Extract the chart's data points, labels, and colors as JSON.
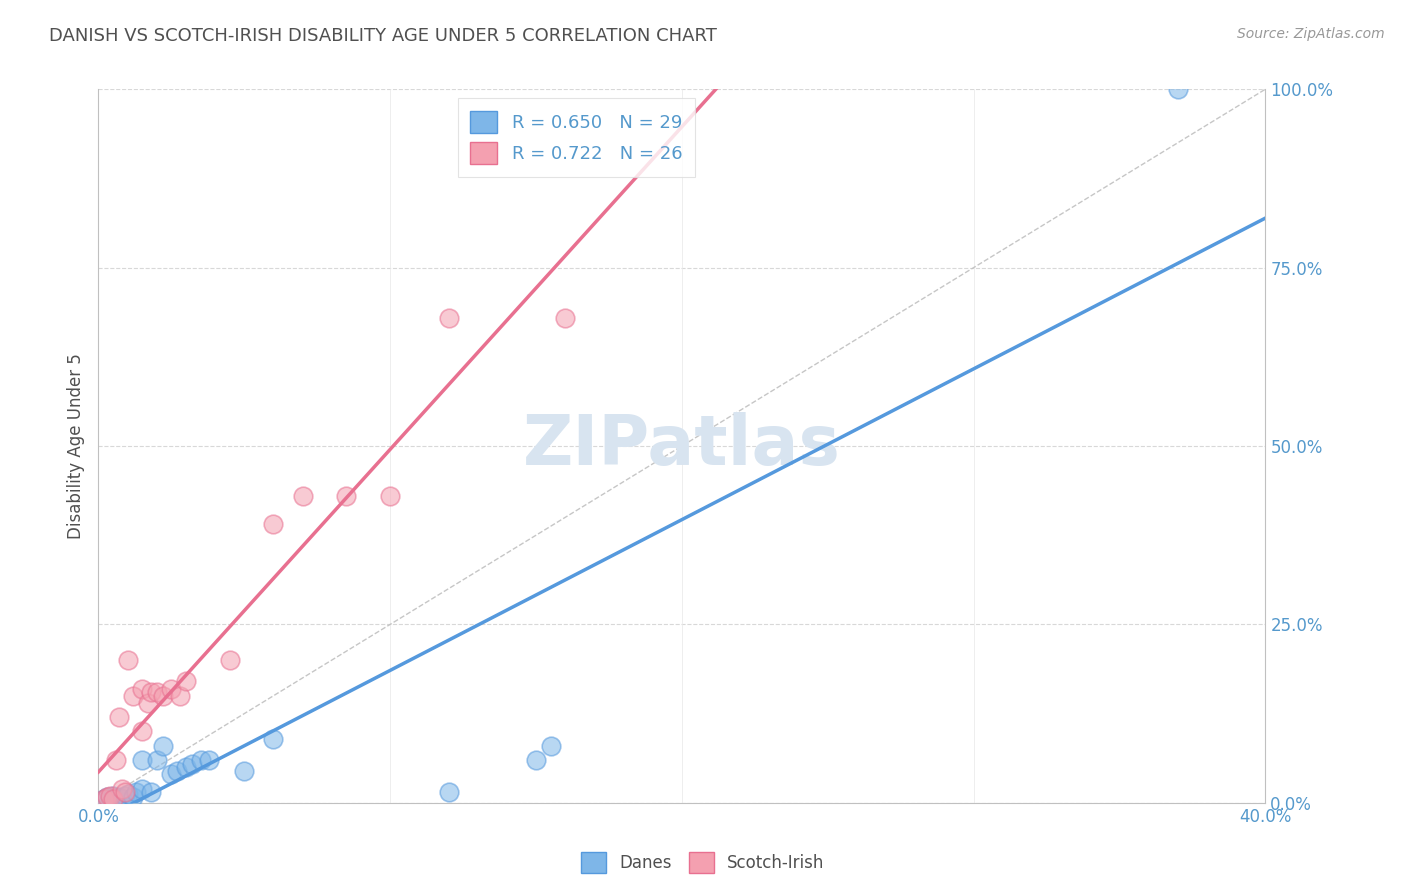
{
  "title": "DANISH VS SCOTCH-IRISH DISABILITY AGE UNDER 5 CORRELATION CHART",
  "source": "Source: ZipAtlas.com",
  "xlabel": "",
  "ylabel": "Disability Age Under 5",
  "xlim": [
    0.0,
    0.4
  ],
  "ylim": [
    0.0,
    1.0
  ],
  "xticks": [
    0.0,
    0.1,
    0.2,
    0.3,
    0.4
  ],
  "yticks": [
    0.0,
    0.25,
    0.5,
    0.75,
    1.0
  ],
  "xticklabels": [
    "0.0%",
    "",
    "",
    "",
    "40.0%"
  ],
  "yticklabels_right": [
    "0.0%",
    "25.0%",
    "50.0%",
    "75.0%",
    "100.0%"
  ],
  "danes_color": "#7EB6E8",
  "danes_edge_color": "#5599DD",
  "scotch_color": "#F4A0B0",
  "scotch_edge_color": "#E87090",
  "danes_R": 0.65,
  "danes_N": 29,
  "scotch_R": 0.722,
  "scotch_N": 26,
  "danes_line_color": "#5599DD",
  "scotch_line_color": "#E87090",
  "danes_points": [
    [
      0.002,
      0.005
    ],
    [
      0.003,
      0.008
    ],
    [
      0.004,
      0.005
    ],
    [
      0.005,
      0.003
    ],
    [
      0.005,
      0.01
    ],
    [
      0.006,
      0.005
    ],
    [
      0.007,
      0.008
    ],
    [
      0.008,
      0.005
    ],
    [
      0.009,
      0.01
    ],
    [
      0.01,
      0.012
    ],
    [
      0.012,
      0.008
    ],
    [
      0.013,
      0.015
    ],
    [
      0.015,
      0.02
    ],
    [
      0.015,
      0.06
    ],
    [
      0.018,
      0.015
    ],
    [
      0.02,
      0.06
    ],
    [
      0.022,
      0.08
    ],
    [
      0.025,
      0.04
    ],
    [
      0.027,
      0.045
    ],
    [
      0.03,
      0.05
    ],
    [
      0.032,
      0.055
    ],
    [
      0.035,
      0.06
    ],
    [
      0.038,
      0.06
    ],
    [
      0.05,
      0.045
    ],
    [
      0.06,
      0.09
    ],
    [
      0.12,
      0.015
    ],
    [
      0.15,
      0.06
    ],
    [
      0.155,
      0.08
    ],
    [
      0.37,
      1.0
    ]
  ],
  "scotch_points": [
    [
      0.002,
      0.005
    ],
    [
      0.003,
      0.008
    ],
    [
      0.004,
      0.01
    ],
    [
      0.005,
      0.005
    ],
    [
      0.006,
      0.06
    ],
    [
      0.007,
      0.12
    ],
    [
      0.008,
      0.02
    ],
    [
      0.009,
      0.015
    ],
    [
      0.01,
      0.2
    ],
    [
      0.012,
      0.15
    ],
    [
      0.015,
      0.1
    ],
    [
      0.015,
      0.16
    ],
    [
      0.017,
      0.14
    ],
    [
      0.018,
      0.155
    ],
    [
      0.02,
      0.155
    ],
    [
      0.022,
      0.15
    ],
    [
      0.025,
      0.16
    ],
    [
      0.028,
      0.15
    ],
    [
      0.03,
      0.17
    ],
    [
      0.045,
      0.2
    ],
    [
      0.06,
      0.39
    ],
    [
      0.07,
      0.43
    ],
    [
      0.085,
      0.43
    ],
    [
      0.1,
      0.43
    ],
    [
      0.12,
      0.68
    ],
    [
      0.16,
      0.68
    ]
  ],
  "background_color": "#FFFFFF",
  "grid_color": "#D8D8D8",
  "title_color": "#505050",
  "axis_color": "#5599CC",
  "watermark": "ZIPatlas",
  "watermark_color": "#D8E4F0"
}
